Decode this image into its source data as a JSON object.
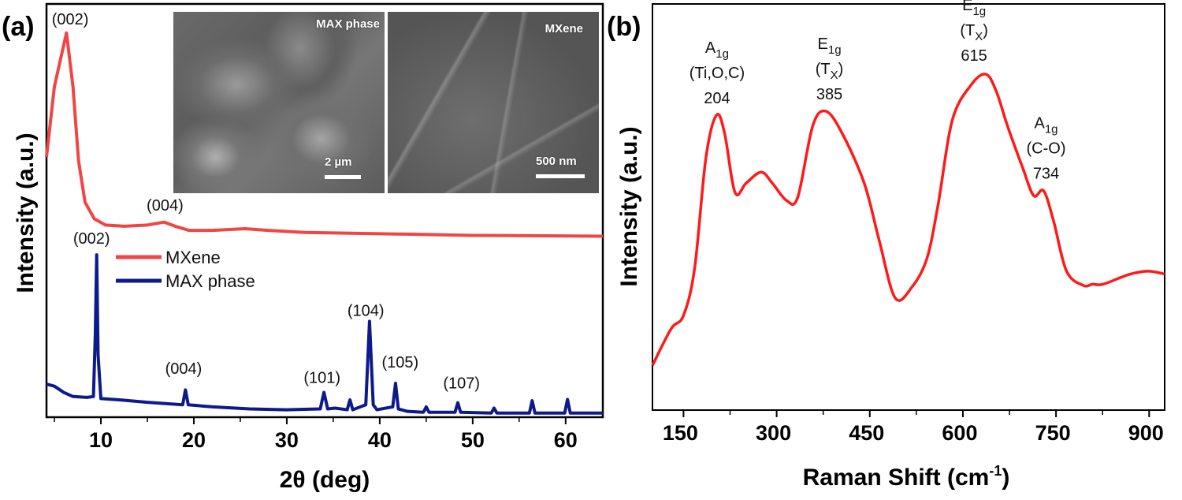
{
  "chart_data": [
    {
      "type": "line",
      "panel_label": "(a)",
      "xlabel": "2θ (deg)",
      "ylabel": "Intensity (a.u.)",
      "xlim": [
        4.15,
        64
      ],
      "ylim": [
        0,
        1
      ],
      "xticks": [
        10,
        20,
        30,
        40,
        50,
        60
      ],
      "yticks": [],
      "grid": false,
      "legend_position": "middle-left",
      "series": [
        {
          "name": "MXene",
          "color": "#f04545",
          "x": [
            4.15,
            5.0,
            6.3,
            7.0,
            7.6,
            8.3,
            9.3,
            10.5,
            12.5,
            15.0,
            16.8,
            18.0,
            19.5,
            22.0,
            25.5,
            28.0,
            32.0,
            40.0,
            50.0,
            64.0
          ],
          "y": [
            0.63,
            0.8,
            0.93,
            0.8,
            0.62,
            0.52,
            0.48,
            0.465,
            0.462,
            0.465,
            0.472,
            0.462,
            0.452,
            0.452,
            0.456,
            0.452,
            0.447,
            0.444,
            0.44,
            0.438
          ]
        },
        {
          "name": "MAX phase",
          "color": "#0d1a8c",
          "x": [
            4.15,
            5.0,
            6.0,
            7.0,
            8.5,
            9.2,
            9.4,
            9.55,
            9.7,
            10.0,
            12.0,
            15.0,
            18.8,
            19.1,
            19.4,
            22.0,
            26.0,
            30.0,
            33.6,
            34.0,
            34.4,
            35.2,
            36.5,
            36.8,
            37.1,
            38.5,
            38.9,
            39.3,
            39.7,
            41.4,
            41.7,
            42.0,
            43.0,
            44.7,
            45.0,
            45.3,
            48.1,
            48.4,
            48.7,
            52.0,
            52.3,
            52.6,
            56.1,
            56.4,
            56.7,
            59.9,
            60.2,
            60.5,
            62.0,
            64.0
          ],
          "y": [
            0.08,
            0.075,
            0.06,
            0.05,
            0.048,
            0.05,
            0.2,
            0.393,
            0.15,
            0.045,
            0.042,
            0.036,
            0.03,
            0.066,
            0.03,
            0.025,
            0.02,
            0.018,
            0.02,
            0.06,
            0.02,
            0.022,
            0.018,
            0.042,
            0.018,
            0.03,
            0.232,
            0.03,
            0.018,
            0.025,
            0.082,
            0.02,
            0.014,
            0.012,
            0.025,
            0.012,
            0.012,
            0.035,
            0.012,
            0.01,
            0.022,
            0.01,
            0.01,
            0.04,
            0.01,
            0.01,
            0.043,
            0.01,
            0.01,
            0.01
          ]
        }
      ],
      "annotations": [
        {
          "text": "(002)",
          "x": 6.7,
          "y": 0.95,
          "series": "MXene"
        },
        {
          "text": "(004)",
          "x": 16.9,
          "y": 0.5,
          "series": "MXene"
        },
        {
          "text": "(002)",
          "x": 9.0,
          "y": 0.42,
          "series": "MAX phase"
        },
        {
          "text": "(004)",
          "x": 18.9,
          "y": 0.105,
          "series": "MAX phase"
        },
        {
          "text": "(101)",
          "x": 33.8,
          "y": 0.083,
          "series": "MAX phase"
        },
        {
          "text": "(104)",
          "x": 38.5,
          "y": 0.245,
          "series": "MAX phase"
        },
        {
          "text": "(105)",
          "x": 42.2,
          "y": 0.12,
          "series": "MAX phase"
        },
        {
          "text": "(107)",
          "x": 48.8,
          "y": 0.07,
          "series": "MAX phase"
        }
      ],
      "insets": [
        {
          "label": "MAX phase",
          "scale_bar": "2 µm"
        },
        {
          "label": "MXene",
          "scale_bar": "500 nm"
        }
      ]
    },
    {
      "type": "line",
      "panel_label": "(b)",
      "xlabel": "Raman Shift (cm",
      "xlabel_sup": "-1",
      "xlabel_end": ")",
      "ylabel": "Intensity (a.u.)",
      "xlim": [
        100,
        925
      ],
      "ylim": [
        0,
        1
      ],
      "xticks": [
        150,
        300,
        450,
        600,
        750,
        900
      ],
      "minor_xticks": [
        225,
        375,
        525,
        675,
        825
      ],
      "yticks": [],
      "grid": false,
      "series": [
        {
          "color": "#ff1a1a",
          "x": [
            100,
            130,
            150,
            168,
            186,
            203,
            216,
            233,
            251,
            275,
            293,
            316,
            334,
            358,
            379,
            405,
            441,
            465,
            491,
            518,
            542,
            560,
            583,
            613,
            637,
            654,
            672,
            696,
            714,
            730,
            746,
            767,
            794,
            809,
            826,
            868,
            898,
            925
          ],
          "y": [
            0.11,
            0.2,
            0.233,
            0.35,
            0.62,
            0.726,
            0.683,
            0.536,
            0.559,
            0.586,
            0.559,
            0.516,
            0.524,
            0.699,
            0.736,
            0.683,
            0.559,
            0.419,
            0.276,
            0.303,
            0.373,
            0.505,
            0.714,
            0.8,
            0.827,
            0.784,
            0.699,
            0.598,
            0.528,
            0.54,
            0.466,
            0.342,
            0.307,
            0.31,
            0.31,
            0.334,
            0.342,
            0.335
          ]
        }
      ],
      "annotations": [
        {
          "mode": "A",
          "sub": "1g",
          "assign": "(Ti,O,C)",
          "value": "204",
          "x": 204,
          "y": 0.755
        },
        {
          "mode": "E",
          "sub": "1g",
          "assign": "(T",
          "assign_sub": "X",
          "assign_end": ")",
          "value": "385",
          "x": 385,
          "y": 0.765
        },
        {
          "mode": "E",
          "sub": "1g",
          "assign": "(T",
          "assign_sub": "X",
          "assign_end": ")",
          "value": "615",
          "x": 618,
          "y": 0.86
        },
        {
          "mode": "A",
          "sub": "1g",
          "assign": "(C-O)",
          "value": "734",
          "x": 734,
          "y": 0.57
        }
      ]
    }
  ]
}
